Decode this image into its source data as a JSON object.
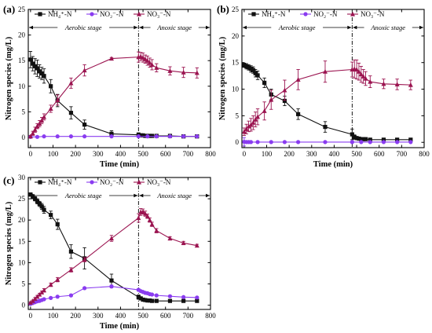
{
  "colors": {
    "nh4": "#111111",
    "no2": "#8a3cf0",
    "no3": "#9b1450",
    "axis": "#000000"
  },
  "chart_data": [
    {
      "type": "line",
      "panel": "(a)",
      "xlabel": "Time (min)",
      "ylabel": "Nitrogen species (mg/L)",
      "xlim": [
        -10,
        800
      ],
      "ylim": [
        -2,
        25
      ],
      "xticks": [
        "0",
        "100",
        "200",
        "300",
        "400",
        "500",
        "600",
        "700",
        "800"
      ],
      "yticks": [
        "0",
        "5",
        "10",
        "15",
        "20",
        "25"
      ],
      "legend": [
        "NH₄⁺-N",
        "NO₂⁻-N",
        "NO₃⁻-N"
      ],
      "stages": {
        "aerobic": "Aerobic stage",
        "anoxic": "Anoxic stage",
        "boundary": 480
      },
      "series": [
        {
          "name": "NH₄⁺-N",
          "x": [
            0,
            10,
            20,
            30,
            40,
            50,
            60,
            90,
            120,
            180,
            240,
            360,
            480,
            490,
            500,
            510,
            520,
            530,
            540,
            560,
            620,
            680,
            740
          ],
          "y": [
            15.2,
            14.4,
            13.9,
            13.5,
            12.9,
            12.5,
            12.0,
            10.0,
            7.2,
            4.8,
            2.5,
            0.7,
            0.5,
            0.4,
            0.4,
            0.3,
            0.3,
            0.3,
            0.3,
            0.3,
            0.3,
            0.2,
            0.2
          ],
          "err": [
            1.6,
            1.4,
            1.5,
            1.6,
            1.3,
            1.2,
            1.4,
            1.3,
            1.2,
            1.2,
            0.9,
            0.6,
            0.4,
            0.3,
            0.3,
            0.3,
            0.3,
            0.3,
            0.3,
            0.3,
            0.3,
            0.3,
            0.3
          ]
        },
        {
          "name": "NO₂⁻-N",
          "x": [
            0,
            30,
            60,
            120,
            180,
            240,
            360,
            480,
            520,
            560,
            620,
            680,
            740
          ],
          "y": [
            0.1,
            0.1,
            0.2,
            0.2,
            0.2,
            0.2,
            0.2,
            0.2,
            0.2,
            0.2,
            0.2,
            0.2,
            0.2
          ],
          "err": [
            0.1,
            0.1,
            0.1,
            0.1,
            0.1,
            0.1,
            0.1,
            0.1,
            0.1,
            0.1,
            0.1,
            0.1,
            0.1
          ]
        },
        {
          "name": "NO₃⁻-N",
          "x": [
            0,
            10,
            20,
            30,
            40,
            50,
            60,
            90,
            120,
            180,
            240,
            360,
            480,
            490,
            500,
            510,
            520,
            530,
            540,
            560,
            620,
            680,
            740
          ],
          "y": [
            0.2,
            0.8,
            1.5,
            2.2,
            2.7,
            3.3,
            4.0,
            5.6,
            7.3,
            10.6,
            13.1,
            15.4,
            15.7,
            15.8,
            15.6,
            15.3,
            15.0,
            14.6,
            14.2,
            13.6,
            13.0,
            12.7,
            12.6
          ],
          "err": [
            0.2,
            0.4,
            0.5,
            0.5,
            0.6,
            0.6,
            0.6,
            0.7,
            1.0,
            1.0,
            1.1,
            0.2,
            1.0,
            0.8,
            0.9,
            0.8,
            0.9,
            0.9,
            1.0,
            0.8,
            0.8,
            1.0,
            1.0
          ]
        }
      ]
    },
    {
      "type": "line",
      "panel": "(b)",
      "xlabel": "Time (min)",
      "ylabel": "Nitrogen species (mg/L)",
      "xlim": [
        -10,
        800
      ],
      "ylim": [
        -1,
        25
      ],
      "xticks": [
        "0",
        "100",
        "200",
        "300",
        "400",
        "500",
        "600",
        "700",
        "800"
      ],
      "yticks": [
        "0",
        "5",
        "10",
        "15",
        "20",
        "25"
      ],
      "legend": [
        "NH₄⁺-N",
        "NO₂⁻-N",
        "NO₃⁻-N"
      ],
      "stages": {
        "aerobic": "Aerobic stage",
        "anoxic": "Anoxic stage",
        "boundary": 480
      },
      "series": [
        {
          "name": "NH₄⁺-N",
          "x": [
            0,
            10,
            20,
            30,
            40,
            50,
            60,
            90,
            120,
            180,
            240,
            360,
            480,
            490,
            500,
            510,
            520,
            530,
            540,
            560,
            620,
            680,
            740
          ],
          "y": [
            14.5,
            14.3,
            14.1,
            13.8,
            13.6,
            13.0,
            12.6,
            11.2,
            9.0,
            7.8,
            5.3,
            2.9,
            1.5,
            1.0,
            0.8,
            0.7,
            0.6,
            0.6,
            0.6,
            0.5,
            0.5,
            0.5,
            0.5
          ],
          "err": [
            0.4,
            0.5,
            0.5,
            0.6,
            0.6,
            0.7,
            0.8,
            0.9,
            1.0,
            0.9,
            1.0,
            1.0,
            1.0,
            0.4,
            0.3,
            0.3,
            0.2,
            0.2,
            0.2,
            0.2,
            0.2,
            0.2,
            0.2
          ]
        },
        {
          "name": "NO₂⁻-N",
          "x": [
            0,
            10,
            20,
            30,
            60,
            120,
            180,
            240,
            360,
            480,
            520,
            560,
            620,
            680,
            740
          ],
          "y": [
            0.1,
            0.05,
            0.05,
            0.05,
            0.05,
            0.05,
            0.05,
            0.05,
            0.05,
            0.05,
            0.05,
            0.05,
            0.05,
            0.05,
            0.05
          ],
          "err": [
            0.8,
            0.1,
            0.1,
            0.1,
            0.1,
            0.1,
            0.1,
            0.1,
            0.1,
            0.1,
            0.1,
            0.1,
            0.1,
            0.1,
            0.1
          ]
        },
        {
          "name": "NO₃⁻-N",
          "x": [
            0,
            10,
            20,
            30,
            40,
            50,
            60,
            90,
            120,
            180,
            240,
            360,
            480,
            490,
            500,
            510,
            520,
            530,
            540,
            560,
            620,
            680,
            740
          ],
          "y": [
            2.0,
            2.5,
            3.0,
            3.3,
            3.7,
            4.3,
            4.8,
            5.9,
            8.0,
            9.8,
            11.8,
            13.3,
            13.7,
            13.8,
            13.7,
            13.3,
            12.8,
            12.4,
            12.0,
            11.4,
            11.0,
            10.9,
            10.8
          ],
          "err": [
            0.7,
            0.9,
            1.0,
            1.2,
            1.3,
            1.4,
            1.5,
            1.7,
            1.8,
            1.9,
            1.9,
            2.0,
            1.4,
            1.7,
            1.8,
            1.6,
            1.5,
            1.3,
            1.3,
            1.1,
            0.9,
            1.0,
            0.9
          ]
        }
      ]
    },
    {
      "type": "line",
      "panel": "(c)",
      "xlabel": "Time (min)",
      "ylabel": "Nitrogen species (mg/L)",
      "xlim": [
        -10,
        800
      ],
      "ylim": [
        -1,
        30
      ],
      "xticks": [
        "0",
        "100",
        "200",
        "300",
        "400",
        "500",
        "600",
        "700",
        "800"
      ],
      "yticks": [
        "0",
        "5",
        "10",
        "15",
        "20",
        "25",
        "30"
      ],
      "legend": [
        "NH₄⁺-N",
        "NO₂⁻-N",
        "NO₃⁻-N"
      ],
      "stages": {
        "aerobic": "Aerobic stage",
        "anoxic": "Anoxic stage",
        "boundary": 480
      },
      "series": [
        {
          "name": "NH₄⁺-N",
          "x": [
            0,
            10,
            20,
            30,
            40,
            50,
            60,
            90,
            120,
            180,
            240,
            360,
            480,
            490,
            500,
            510,
            520,
            530,
            540,
            560,
            620,
            680,
            740
          ],
          "y": [
            26.0,
            25.5,
            25.0,
            24.4,
            23.8,
            23.2,
            22.4,
            21.2,
            19.0,
            12.6,
            11.0,
            5.8,
            1.9,
            1.6,
            1.3,
            1.2,
            1.1,
            1.1,
            1.0,
            1.0,
            1.0,
            1.0,
            1.0
          ],
          "err": [
            0.4,
            0.5,
            0.5,
            0.6,
            0.6,
            0.7,
            0.8,
            0.9,
            1.2,
            1.6,
            2.5,
            1.5,
            0.5,
            0.3,
            0.3,
            0.2,
            0.2,
            0.2,
            0.2,
            0.2,
            0.2,
            0.2,
            0.2
          ]
        },
        {
          "name": "NO₂⁻-N",
          "x": [
            0,
            10,
            20,
            30,
            40,
            50,
            60,
            90,
            120,
            180,
            240,
            360,
            480,
            490,
            500,
            510,
            520,
            530,
            540,
            560,
            620,
            680,
            740
          ],
          "y": [
            0.3,
            0.5,
            0.7,
            0.9,
            1.0,
            1.2,
            1.4,
            1.7,
            2.0,
            2.3,
            4.0,
            4.4,
            3.6,
            3.3,
            3.1,
            2.9,
            2.8,
            2.6,
            2.5,
            2.3,
            2.1,
            1.9,
            1.8
          ],
          "err": [
            0.1,
            0.1,
            0.1,
            0.1,
            0.1,
            0.1,
            0.1,
            0.1,
            0.1,
            0.2,
            0.2,
            0.3,
            0.3,
            0.2,
            0.2,
            0.2,
            0.2,
            0.2,
            0.2,
            0.2,
            0.2,
            0.2,
            0.2
          ]
        },
        {
          "name": "NO₃⁻-N",
          "x": [
            0,
            10,
            20,
            30,
            40,
            50,
            60,
            90,
            120,
            180,
            240,
            360,
            480,
            490,
            500,
            510,
            520,
            530,
            540,
            560,
            620,
            680,
            740
          ],
          "y": [
            0.6,
            1.0,
            1.5,
            2.0,
            2.5,
            3.0,
            3.5,
            4.8,
            6.0,
            8.3,
            10.7,
            15.7,
            20.5,
            21.9,
            22.0,
            21.5,
            20.9,
            20.0,
            19.0,
            17.5,
            15.7,
            14.6,
            14.0
          ],
          "err": [
            0.2,
            0.2,
            0.3,
            0.3,
            0.3,
            0.3,
            0.4,
            0.4,
            0.5,
            0.5,
            0.5,
            0.7,
            1.0,
            0.8,
            0.6,
            0.6,
            0.5,
            0.5,
            0.5,
            0.5,
            0.4,
            0.4,
            0.3
          ]
        }
      ]
    }
  ]
}
